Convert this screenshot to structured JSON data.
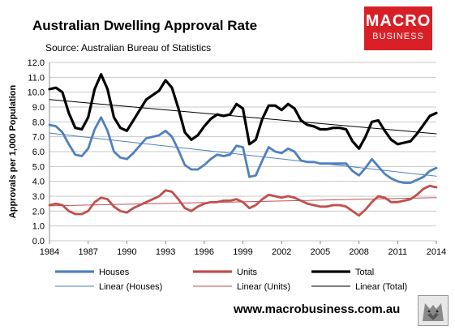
{
  "header": {
    "title": "Australian Dwelling Approval Rate",
    "subtitle": "Source: Australian Bureau of Statistics"
  },
  "brand": {
    "line1": "MACRO",
    "line2": "BUSINESS",
    "color": "#d91f26"
  },
  "footer": {
    "website": "www.macrobusiness.com.au",
    "logo_icon": "wolf-logo-icon"
  },
  "chart_data": {
    "type": "line",
    "ylabel": "Approvals per 1,000 Population",
    "xlabel": "",
    "xlim": [
      1984,
      2014
    ],
    "ylim": [
      0,
      12
    ],
    "x_ticks": [
      1984,
      1987,
      1990,
      1993,
      1996,
      1999,
      2002,
      2005,
      2008,
      2011,
      2014
    ],
    "y_ticks": [
      "0.0",
      "1.0",
      "2.0",
      "3.0",
      "4.0",
      "5.0",
      "6.0",
      "7.0",
      "8.0",
      "9.0",
      "10.0",
      "11.0",
      "12.0"
    ],
    "grid": "horizontal",
    "legend_position": "bottom",
    "series": [
      {
        "name": "Houses",
        "color": "#4f81bd",
        "style": "thick",
        "x": [
          1984,
          1984.5,
          1985,
          1985.5,
          1986,
          1986.5,
          1987,
          1987.5,
          1988,
          1988.5,
          1989,
          1989.5,
          1990,
          1990.5,
          1991,
          1991.5,
          1992,
          1992.5,
          1993,
          1993.5,
          1994,
          1994.5,
          1995,
          1995.5,
          1996,
          1996.5,
          1997,
          1997.5,
          1998,
          1998.5,
          1999,
          1999.5,
          2000,
          2000.5,
          2001,
          2001.5,
          2002,
          2002.5,
          2003,
          2003.5,
          2004,
          2004.5,
          2005,
          2005.5,
          2006,
          2006.5,
          2007,
          2007.5,
          2008,
          2008.5,
          2009,
          2009.5,
          2010,
          2010.5,
          2011,
          2011.5,
          2012,
          2012.5,
          2013,
          2013.5,
          2014
        ],
        "y": [
          7.8,
          7.7,
          7.3,
          6.5,
          5.8,
          5.7,
          6.2,
          7.5,
          8.3,
          7.4,
          6.0,
          5.6,
          5.5,
          5.9,
          6.4,
          6.9,
          7.0,
          7.1,
          7.4,
          7.0,
          6.1,
          5.1,
          4.8,
          4.8,
          5.1,
          5.5,
          5.8,
          5.7,
          5.8,
          6.4,
          6.3,
          4.3,
          4.4,
          5.4,
          6.3,
          6.0,
          5.9,
          6.2,
          6.0,
          5.4,
          5.3,
          5.3,
          5.2,
          5.2,
          5.2,
          5.2,
          5.2,
          4.7,
          4.4,
          4.9,
          5.5,
          5.0,
          4.5,
          4.2,
          4.0,
          3.9,
          3.9,
          4.1,
          4.3,
          4.7,
          4.9
        ]
      },
      {
        "name": "Units",
        "color": "#c0504d",
        "style": "thick",
        "x": [
          1984,
          1984.5,
          1985,
          1985.5,
          1986,
          1986.5,
          1987,
          1987.5,
          1988,
          1988.5,
          1989,
          1989.5,
          1990,
          1990.5,
          1991,
          1991.5,
          1992,
          1992.5,
          1993,
          1993.5,
          1994,
          1994.5,
          1995,
          1995.5,
          1996,
          1996.5,
          1997,
          1997.5,
          1998,
          1998.5,
          1999,
          1999.5,
          2000,
          2000.5,
          2001,
          2001.5,
          2002,
          2002.5,
          2003,
          2003.5,
          2004,
          2004.5,
          2005,
          2005.5,
          2006,
          2006.5,
          2007,
          2007.5,
          2008,
          2008.5,
          2009,
          2009.5,
          2010,
          2010.5,
          2011,
          2011.5,
          2012,
          2012.5,
          2013,
          2013.5,
          2014
        ],
        "y": [
          2.4,
          2.5,
          2.4,
          2.0,
          1.8,
          1.8,
          2.0,
          2.6,
          2.9,
          2.8,
          2.3,
          2.0,
          1.9,
          2.2,
          2.4,
          2.6,
          2.8,
          3.0,
          3.4,
          3.3,
          2.8,
          2.2,
          2.0,
          2.3,
          2.5,
          2.6,
          2.6,
          2.7,
          2.7,
          2.8,
          2.6,
          2.2,
          2.4,
          2.8,
          3.1,
          3.0,
          2.9,
          3.0,
          2.9,
          2.7,
          2.5,
          2.4,
          2.3,
          2.3,
          2.4,
          2.4,
          2.3,
          2.0,
          1.7,
          2.1,
          2.6,
          3.0,
          2.9,
          2.6,
          2.6,
          2.7,
          2.8,
          3.1,
          3.5,
          3.7,
          3.6
        ]
      },
      {
        "name": "Total",
        "color": "#000000",
        "style": "thick",
        "x": [
          1984,
          1984.5,
          1985,
          1985.5,
          1986,
          1986.5,
          1987,
          1987.5,
          1988,
          1988.5,
          1989,
          1989.5,
          1990,
          1990.5,
          1991,
          1991.5,
          1992,
          1992.5,
          1993,
          1993.5,
          1994,
          1994.5,
          1995,
          1995.5,
          1996,
          1996.5,
          1997,
          1997.5,
          1998,
          1998.5,
          1999,
          1999.5,
          2000,
          2000.5,
          2001,
          2001.5,
          2002,
          2002.5,
          2003,
          2003.5,
          2004,
          2004.5,
          2005,
          2005.5,
          2006,
          2006.5,
          2007,
          2007.5,
          2008,
          2008.5,
          2009,
          2009.5,
          2010,
          2010.5,
          2011,
          2011.5,
          2012,
          2012.5,
          2013,
          2013.5,
          2014
        ],
        "y": [
          10.2,
          10.3,
          10.0,
          8.6,
          7.6,
          7.5,
          8.3,
          10.2,
          11.2,
          10.2,
          8.3,
          7.6,
          7.4,
          8.1,
          8.8,
          9.5,
          9.8,
          10.1,
          10.8,
          10.3,
          8.9,
          7.3,
          6.8,
          7.1,
          7.7,
          8.2,
          8.5,
          8.4,
          8.5,
          9.2,
          8.9,
          6.5,
          6.8,
          8.2,
          9.1,
          9.1,
          8.8,
          9.2,
          8.9,
          8.1,
          7.8,
          7.7,
          7.5,
          7.5,
          7.6,
          7.6,
          7.5,
          6.7,
          6.2,
          7.0,
          8.0,
          8.1,
          7.4,
          6.8,
          6.5,
          6.6,
          6.7,
          7.2,
          7.8,
          8.4,
          8.6
        ]
      },
      {
        "name": "Linear (Houses)",
        "color": "#4f81bd",
        "style": "thin",
        "x": [
          1984,
          2014
        ],
        "y": [
          7.25,
          4.35
        ]
      },
      {
        "name": "Linear (Units)",
        "color": "#c0504d",
        "style": "thin",
        "x": [
          1984,
          2014
        ],
        "y": [
          2.35,
          2.9
        ]
      },
      {
        "name": "Linear (Total)",
        "color": "#000000",
        "style": "thin",
        "x": [
          1984,
          2014
        ],
        "y": [
          9.5,
          7.2
        ]
      }
    ]
  }
}
